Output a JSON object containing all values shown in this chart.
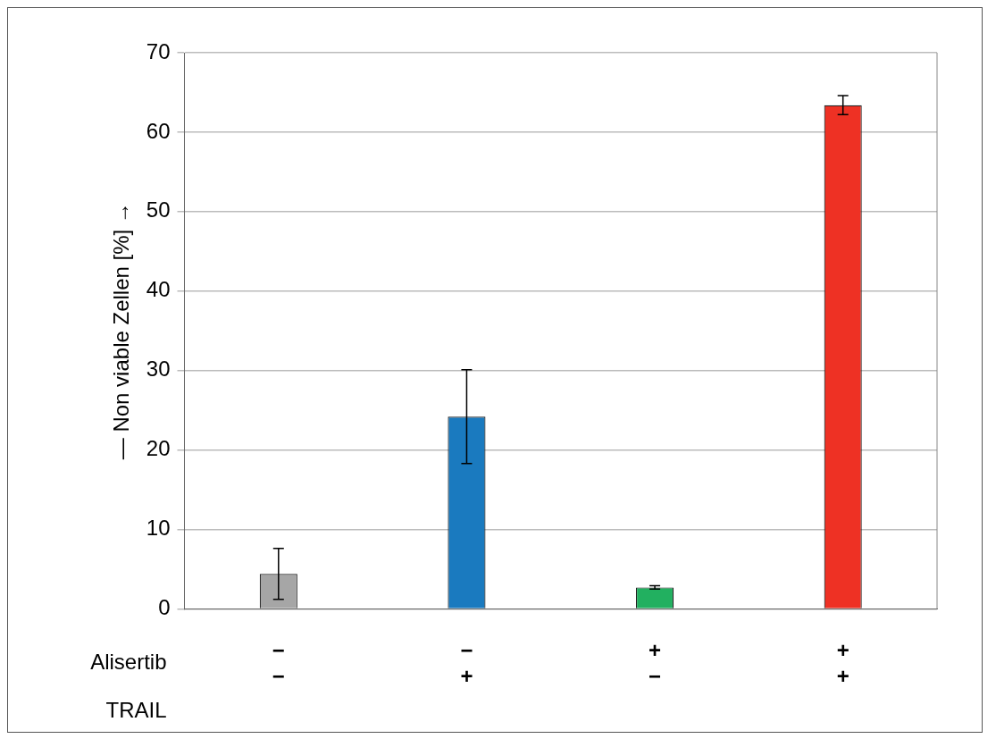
{
  "chart_data": {
    "type": "bar",
    "ylabel": "— Non viable Zellen [%] →",
    "categories": [
      "−\n−",
      "−\n+",
      "+\n−",
      "+\n+"
    ],
    "values": [
      4.4,
      24.2,
      2.7,
      63.4
    ],
    "colors": [
      "#a6a6a6",
      "#1a7abf",
      "#22b060",
      "#ee3124"
    ],
    "errors": [
      3.2,
      5.9,
      0.2,
      1.2
    ],
    "annotations": [
      "Alisertib",
      "TRAIL"
    ],
    "ylim": [
      0,
      70
    ],
    "yticks": [
      0,
      10,
      20,
      30,
      40,
      50,
      60,
      70
    ],
    "grid": "y",
    "legend": false
  }
}
